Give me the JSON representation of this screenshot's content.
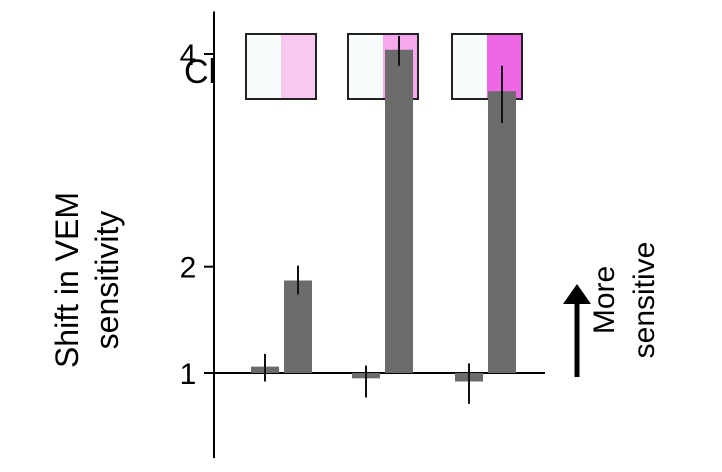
{
  "chart_data": {
    "type": "bar",
    "title": "",
    "ylabel": "Shift in VEM sensitivity",
    "xlabel": "",
    "ylim": [
      0.2,
      4.4
    ],
    "baseline": 1,
    "yticks": [
      1,
      2,
      4
    ],
    "grid": false,
    "legend": "none",
    "groups": [
      {
        "bars": [
          {
            "value": 1.06,
            "err": [
              0.92,
              1.18
            ]
          },
          {
            "value": 1.87,
            "err": [
              1.74,
              2.01
            ]
          }
        ]
      },
      {
        "bars": [
          {
            "value": 0.95,
            "err": [
              0.77,
              1.07
            ]
          },
          {
            "value": 4.04,
            "err": [
              3.89,
              4.17
            ]
          }
        ]
      },
      {
        "bars": [
          {
            "value": 0.92,
            "err": [
              0.71,
              1.09
            ]
          },
          {
            "value": 3.65,
            "err": [
              3.35,
              3.89
            ]
          }
        ]
      }
    ],
    "colors": {
      "bar": "#6b6b6b",
      "errorbar": "#111111",
      "axis": "#000000"
    }
  },
  "cl_legend": {
    "label": "Cl",
    "swatches": [
      {
        "left": "#f8fbfc",
        "right": "#f9c8f1"
      },
      {
        "left": "#f8fbfc",
        "right": "#f7a7ee"
      },
      {
        "left": "#f8fbfc",
        "right": "#ee67e4"
      }
    ]
  },
  "annotation": {
    "line1": "More",
    "line2": "sensitive"
  }
}
